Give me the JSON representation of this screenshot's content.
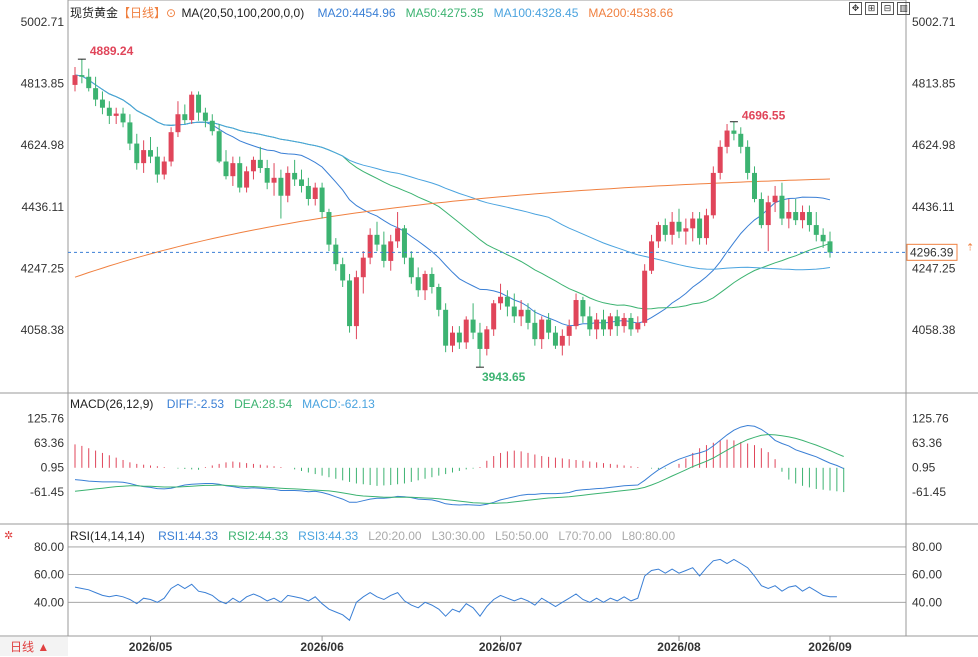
{
  "header": {
    "instrument": "现货黄金",
    "period": "【日线】",
    "ma_group": "MA(20,50,100,200,0,0)",
    "ma_values": [
      {
        "label": "MA20:4454.96",
        "color": "#3a7fd5"
      },
      {
        "label": "MA50:4275.35",
        "color": "#3cb371"
      },
      {
        "label": "MA100:4328.45",
        "color": "#4aa3df"
      },
      {
        "label": "MA200:4538.66",
        "color": "#f08040"
      }
    ],
    "macd_title": "MACD(26,12,9)",
    "macd_values": [
      {
        "label": "DIFF:-2.53",
        "color": "#3a7fd5"
      },
      {
        "label": "DEA:28.54",
        "color": "#3cb371"
      },
      {
        "label": "MACD:-62.13",
        "color": "#4aa3df"
      }
    ],
    "rsi_title": "RSI(14,14,14)",
    "rsi_values": [
      {
        "label": "RSI1:44.33",
        "color": "#3a7fd5"
      },
      {
        "label": "RSI2:44.33",
        "color": "#3cb371"
      },
      {
        "label": "RSI3:44.33",
        "color": "#4aa3df"
      },
      {
        "label": "L20:20.00",
        "color": "#aaaaaa"
      },
      {
        "label": "L30:30.00",
        "color": "#aaaaaa"
      },
      {
        "label": "L50:50.00",
        "color": "#aaaaaa"
      },
      {
        "label": "L70:70.00",
        "color": "#aaaaaa"
      },
      {
        "label": "L80:80.00",
        "color": "#aaaaaa"
      }
    ]
  },
  "toolbar_icons": [
    "expand-icon",
    "zoom-in-icon",
    "zoom-out-icon",
    "settings-icon"
  ],
  "bottom_tab": "日线 ▲",
  "colors": {
    "up": "#e0455a",
    "down": "#3cb371",
    "ma20": "#3a7fd5",
    "ma50": "#3cb371",
    "ma100": "#4aa3df",
    "ma200": "#f08040"
  },
  "chart_data": {
    "type": "candlestick",
    "price_ticks": [
      "5002.71",
      "4813.85",
      "4624.98",
      "4436.11",
      "4247.25",
      "4058.38"
    ],
    "price_range": [
      3920,
      5003
    ],
    "current_price": "4296.39",
    "annotations": {
      "high": "4889.24",
      "low": "3943.65",
      "local_high": "4696.55"
    },
    "x_dates": [
      "2026/05",
      "2026/06",
      "2026/07",
      "2026/08",
      "2026/09"
    ],
    "ohlc": [
      [
        4810,
        4865,
        4790,
        4840
      ],
      [
        4840,
        4889,
        4815,
        4835
      ],
      [
        4835,
        4860,
        4790,
        4800
      ],
      [
        4800,
        4835,
        4745,
        4765
      ],
      [
        4765,
        4790,
        4720,
        4740
      ],
      [
        4740,
        4760,
        4690,
        4715
      ],
      [
        4715,
        4740,
        4690,
        4722
      ],
      [
        4722,
        4740,
        4680,
        4695
      ],
      [
        4695,
        4720,
        4610,
        4630
      ],
      [
        4630,
        4660,
        4550,
        4570
      ],
      [
        4570,
        4640,
        4540,
        4610
      ],
      [
        4610,
        4650,
        4570,
        4590
      ],
      [
        4590,
        4620,
        4510,
        4535
      ],
      [
        4535,
        4590,
        4520,
        4575
      ],
      [
        4575,
        4680,
        4560,
        4665
      ],
      [
        4665,
        4760,
        4650,
        4720
      ],
      [
        4720,
        4750,
        4690,
        4702
      ],
      [
        4702,
        4790,
        4690,
        4780
      ],
      [
        4780,
        4790,
        4700,
        4725
      ],
      [
        4725,
        4740,
        4680,
        4700
      ],
      [
        4700,
        4720,
        4655,
        4668
      ],
      [
        4668,
        4690,
        4570,
        4575
      ],
      [
        4575,
        4610,
        4520,
        4530
      ],
      [
        4530,
        4590,
        4500,
        4570
      ],
      [
        4570,
        4590,
        4480,
        4495
      ],
      [
        4495,
        4560,
        4480,
        4545
      ],
      [
        4545,
        4590,
        4520,
        4580
      ],
      [
        4580,
        4620,
        4540,
        4555
      ],
      [
        4555,
        4580,
        4490,
        4510
      ],
      [
        4510,
        4570,
        4470,
        4525
      ],
      [
        4525,
        4550,
        4400,
        4470
      ],
      [
        4470,
        4560,
        4450,
        4540
      ],
      [
        4540,
        4580,
        4500,
        4520
      ],
      [
        4520,
        4550,
        4480,
        4500
      ],
      [
        4500,
        4525,
        4440,
        4460
      ],
      [
        4460,
        4510,
        4440,
        4495
      ],
      [
        4495,
        4510,
        4400,
        4420
      ],
      [
        4420,
        4430,
        4300,
        4320
      ],
      [
        4320,
        4340,
        4240,
        4260
      ],
      [
        4260,
        4280,
        4190,
        4210
      ],
      [
        4210,
        4230,
        4050,
        4070
      ],
      [
        4070,
        4240,
        4030,
        4220
      ],
      [
        4220,
        4300,
        4170,
        4280
      ],
      [
        4280,
        4370,
        4260,
        4350
      ],
      [
        4350,
        4390,
        4300,
        4320
      ],
      [
        4320,
        4360,
        4250,
        4270
      ],
      [
        4270,
        4350,
        4240,
        4330
      ],
      [
        4330,
        4420,
        4310,
        4370
      ],
      [
        4370,
        4380,
        4260,
        4280
      ],
      [
        4280,
        4300,
        4200,
        4220
      ],
      [
        4220,
        4250,
        4160,
        4180
      ],
      [
        4180,
        4240,
        4150,
        4230
      ],
      [
        4230,
        4250,
        4170,
        4190
      ],
      [
        4190,
        4200,
        4100,
        4120
      ],
      [
        4120,
        4140,
        3990,
        4010
      ],
      [
        4010,
        4070,
        3990,
        4050
      ],
      [
        4050,
        4070,
        4000,
        4020
      ],
      [
        4020,
        4100,
        4000,
        4090
      ],
      [
        4090,
        4140,
        4030,
        4050
      ],
      [
        4050,
        4080,
        3944,
        4000
      ],
      [
        4000,
        4070,
        3980,
        4060
      ],
      [
        4060,
        4150,
        4040,
        4140
      ],
      [
        4140,
        4200,
        4120,
        4160
      ],
      [
        4160,
        4180,
        4100,
        4130
      ],
      [
        4130,
        4170,
        4080,
        4100
      ],
      [
        4100,
        4150,
        4070,
        4120
      ],
      [
        4120,
        4140,
        4060,
        4080
      ],
      [
        4080,
        4120,
        4010,
        4030
      ],
      [
        4030,
        4100,
        4000,
        4090
      ],
      [
        4090,
        4110,
        4030,
        4050
      ],
      [
        4050,
        4070,
        4000,
        4010
      ],
      [
        4010,
        4060,
        3980,
        4040
      ],
      [
        4040,
        4090,
        4010,
        4070
      ],
      [
        4070,
        4170,
        4060,
        4150
      ],
      [
        4150,
        4160,
        4080,
        4100
      ],
      [
        4100,
        4130,
        4040,
        4060
      ],
      [
        4060,
        4110,
        4030,
        4090
      ],
      [
        4090,
        4120,
        4040,
        4060
      ],
      [
        4060,
        4110,
        4040,
        4100
      ],
      [
        4100,
        4120,
        4040,
        4070
      ],
      [
        4070,
        4110,
        4050,
        4095
      ],
      [
        4095,
        4110,
        4040,
        4060
      ],
      [
        4060,
        4100,
        4050,
        4080
      ],
      [
        4080,
        4260,
        4070,
        4240
      ],
      [
        4240,
        4350,
        4230,
        4330
      ],
      [
        4330,
        4390,
        4310,
        4380
      ],
      [
        4380,
        4400,
        4330,
        4350
      ],
      [
        4350,
        4420,
        4320,
        4390
      ],
      [
        4390,
        4430,
        4340,
        4360
      ],
      [
        4360,
        4400,
        4320,
        4370
      ],
      [
        4370,
        4420,
        4330,
        4400
      ],
      [
        4400,
        4420,
        4320,
        4340
      ],
      [
        4340,
        4430,
        4320,
        4410
      ],
      [
        4410,
        4560,
        4400,
        4540
      ],
      [
        4540,
        4640,
        4520,
        4620
      ],
      [
        4620,
        4690,
        4600,
        4670
      ],
      [
        4670,
        4697,
        4640,
        4660
      ],
      [
        4660,
        4680,
        4600,
        4620
      ],
      [
        4620,
        4640,
        4520,
        4540
      ],
      [
        4540,
        4560,
        4450,
        4460
      ],
      [
        4460,
        4480,
        4370,
        4380
      ],
      [
        4380,
        4470,
        4300,
        4450
      ],
      [
        4450,
        4500,
        4420,
        4470
      ],
      [
        4470,
        4510,
        4380,
        4400
      ],
      [
        4400,
        4460,
        4370,
        4420
      ],
      [
        4420,
        4460,
        4380,
        4395
      ],
      [
        4395,
        4440,
        4370,
        4420
      ],
      [
        4420,
        4440,
        4360,
        4380
      ],
      [
        4380,
        4420,
        4330,
        4350
      ],
      [
        4350,
        4370,
        4310,
        4330
      ],
      [
        4330,
        4360,
        4280,
        4296
      ]
    ],
    "macd_ticks": [
      "125.76",
      "63.36",
      "0.95",
      "-61.45"
    ],
    "macd_range": [
      -95,
      140
    ],
    "macd_hist": [
      60,
      56,
      50,
      44,
      38,
      32,
      26,
      20,
      14,
      10,
      8,
      6,
      4,
      2,
      0,
      -2,
      -3,
      -4,
      -5,
      2,
      6,
      10,
      14,
      16,
      14,
      12,
      10,
      8,
      6,
      4,
      2,
      0,
      -4,
      -8,
      -12,
      -16,
      -20,
      -24,
      -28,
      -32,
      -36,
      -40,
      -42,
      -44,
      -46,
      -45,
      -44,
      -42,
      -40,
      -36,
      -32,
      -28,
      -24,
      -20,
      -16,
      -12,
      -8,
      -4,
      -2,
      2,
      18,
      30,
      38,
      42,
      44,
      42,
      38,
      34,
      30,
      28,
      26,
      24,
      22,
      20,
      18,
      16,
      14,
      12,
      10,
      8,
      6,
      4,
      2,
      0,
      -2,
      -3,
      -2,
      0,
      10,
      24,
      38,
      50,
      58,
      64,
      70,
      72,
      70,
      66,
      62,
      58,
      50,
      40,
      22,
      -10,
      -30,
      -40,
      -46,
      -50,
      -54,
      -56,
      -58,
      -60,
      -62
    ],
    "macd_diff": [
      -30,
      -32,
      -34,
      -35,
      -36,
      -36,
      -36,
      -37,
      -40,
      -45,
      -48,
      -50,
      -53,
      -54,
      -52,
      -48,
      -44,
      -42,
      -41,
      -40,
      -40,
      -42,
      -46,
      -48,
      -51,
      -52,
      -51,
      -52,
      -54,
      -55,
      -58,
      -58,
      -58,
      -59,
      -61,
      -60,
      -63,
      -68,
      -74,
      -80,
      -88,
      -88,
      -84,
      -80,
      -78,
      -78,
      -76,
      -73,
      -74,
      -76,
      -80,
      -81,
      -82,
      -86,
      -92,
      -94,
      -95,
      -94,
      -95,
      -96,
      -93,
      -88,
      -82,
      -78,
      -74,
      -70,
      -68,
      -68,
      -66,
      -66,
      -66,
      -65,
      -63,
      -58,
      -56,
      -55,
      -53,
      -52,
      -50,
      -48,
      -46,
      -45,
      -44,
      -32,
      -18,
      -5,
      5,
      14,
      22,
      28,
      34,
      38,
      44,
      56,
      70,
      84,
      96,
      104,
      108,
      106,
      98,
      86,
      70,
      62,
      56,
      46,
      40,
      34,
      28,
      20,
      12,
      6,
      -2
    ],
    "macd_dea": [
      -60,
      -58,
      -56,
      -54,
      -52,
      -50,
      -48,
      -47,
      -46,
      -46,
      -47,
      -47,
      -48,
      -49,
      -49,
      -49,
      -48,
      -47,
      -46,
      -45,
      -45,
      -44,
      -45,
      -46,
      -47,
      -48,
      -48,
      -49,
      -50,
      -51,
      -52,
      -53,
      -54,
      -55,
      -56,
      -57,
      -58,
      -59,
      -61,
      -64,
      -67,
      -70,
      -72,
      -73,
      -74,
      -75,
      -75,
      -75,
      -75,
      -75,
      -76,
      -77,
      -78,
      -79,
      -81,
      -83,
      -85,
      -87,
      -89,
      -90,
      -91,
      -91,
      -90,
      -89,
      -87,
      -85,
      -83,
      -81,
      -79,
      -77,
      -76,
      -75,
      -74,
      -72,
      -70,
      -68,
      -66,
      -64,
      -62,
      -60,
      -58,
      -56,
      -54,
      -50,
      -44,
      -37,
      -29,
      -21,
      -13,
      -5,
      3,
      10,
      17,
      25,
      35,
      45,
      55,
      64,
      72,
      78,
      83,
      85,
      84,
      82,
      79,
      75,
      70,
      64,
      58,
      51,
      44,
      36,
      29
    ],
    "rsi_ticks": [
      "80.00",
      "60.00",
      "40.00"
    ],
    "rsi_range": [
      20,
      85
    ],
    "rsi": [
      51,
      50,
      49,
      47,
      45,
      44,
      45,
      44,
      42,
      39,
      43,
      42,
      40,
      43,
      50,
      53,
      50,
      53,
      48,
      47,
      45,
      41,
      39,
      43,
      40,
      44,
      46,
      44,
      41,
      43,
      40,
      45,
      44,
      43,
      41,
      44,
      39,
      35,
      33,
      31,
      27,
      40,
      44,
      47,
      44,
      42,
      45,
      47,
      41,
      38,
      36,
      40,
      38,
      35,
      30,
      35,
      33,
      39,
      36,
      30,
      37,
      42,
      45,
      43,
      41,
      43,
      41,
      38,
      43,
      40,
      37,
      40,
      43,
      46,
      42,
      40,
      43,
      40,
      43,
      41,
      44,
      41,
      43,
      59,
      63,
      64,
      61,
      64,
      61,
      63,
      65,
      59,
      65,
      70,
      71,
      68,
      71,
      68,
      65,
      59,
      52,
      50,
      52,
      48,
      51,
      52,
      48,
      51,
      48,
      45,
      44,
      44
    ]
  }
}
